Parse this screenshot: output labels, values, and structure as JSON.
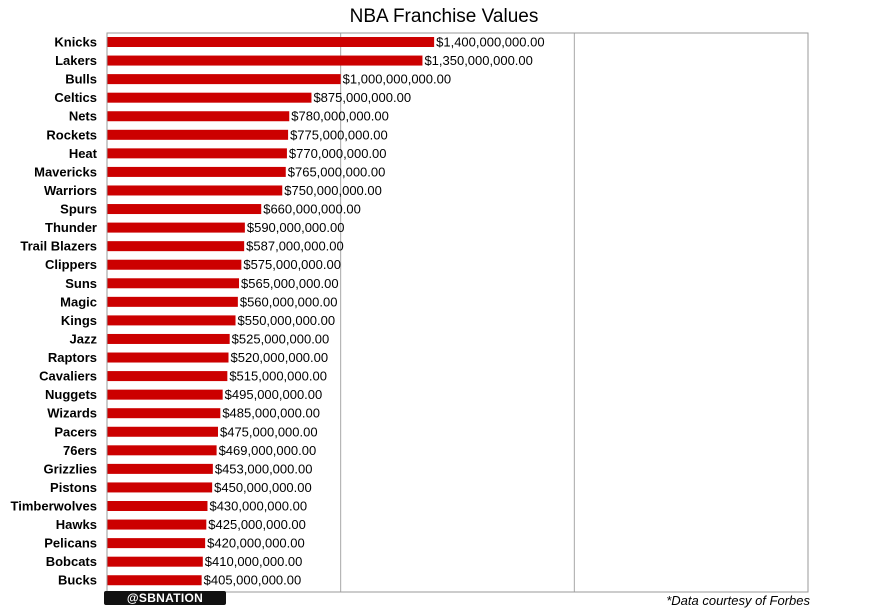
{
  "chart_data": {
    "type": "bar",
    "orientation": "horizontal",
    "title": "NBA Franchise Values",
    "categories": [
      "Knicks",
      "Lakers",
      "Bulls",
      "Celtics",
      "Nets",
      "Rockets",
      "Heat",
      "Mavericks",
      "Warriors",
      "Spurs",
      "Thunder",
      "Trail Blazers",
      "Clippers",
      "Suns",
      "Magic",
      "Kings",
      "Jazz",
      "Raptors",
      "Cavaliers",
      "Nuggets",
      "Wizards",
      "Pacers",
      "76ers",
      "Grizzlies",
      "Pistons",
      "Timberwolves",
      "Hawks",
      "Pelicans",
      "Bobcats",
      "Bucks"
    ],
    "values": [
      1400000000,
      1350000000,
      1000000000,
      875000000,
      780000000,
      775000000,
      770000000,
      765000000,
      750000000,
      660000000,
      590000000,
      587000000,
      575000000,
      565000000,
      560000000,
      550000000,
      525000000,
      520000000,
      515000000,
      495000000,
      485000000,
      475000000,
      469000000,
      453000000,
      450000000,
      430000000,
      425000000,
      420000000,
      410000000,
      405000000
    ],
    "data_labels": [
      "$1,400,000,000.00",
      "$1,350,000,000.00",
      "$1,000,000,000.00",
      "$875,000,000.00",
      "$780,000,000.00",
      "$775,000,000.00",
      "$770,000,000.00",
      "$765,000,000.00",
      "$750,000,000.00",
      "$660,000,000.00",
      "$590,000,000.00",
      "$587,000,000.00",
      "$575,000,000.00",
      "$565,000,000.00",
      "$560,000,000.00",
      "$550,000,000.00",
      "$525,000,000.00",
      "$520,000,000.00",
      "$515,000,000.00",
      "$495,000,000.00",
      "$485,000,000.00",
      "$475,000,000.00",
      "$469,000,000.00",
      "$453,000,000.00",
      "$450,000,000.00",
      "$430,000,000.00",
      "$425,000,000.00",
      "$420,000,000.00",
      "$410,000,000.00",
      "$405,000,000.00"
    ],
    "xlim": [
      0,
      3000000000
    ],
    "gridlines": [
      0,
      1000000000,
      2000000000,
      3000000000
    ],
    "grid": true,
    "bar_color": "#cc0000",
    "xlabel": "",
    "ylabel": ""
  },
  "source_note": "*Data courtesy of Forbes",
  "logo": {
    "text": "@SBNATION",
    "background": "#111111"
  }
}
